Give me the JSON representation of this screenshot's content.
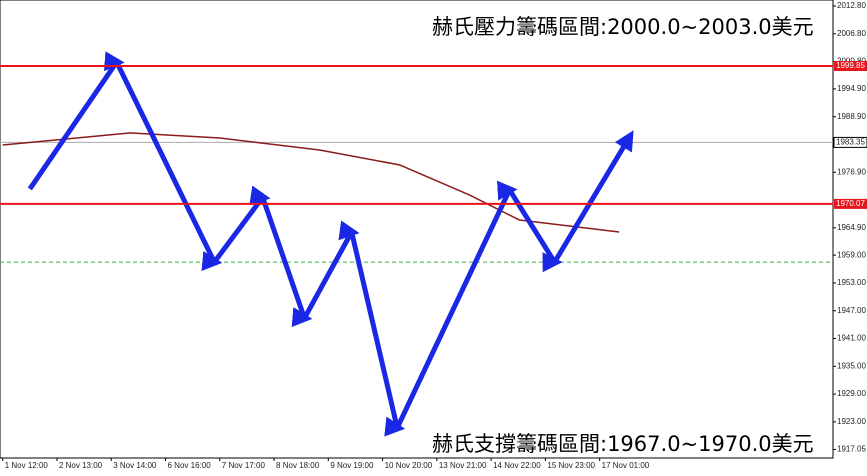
{
  "chart_data": {
    "type": "line",
    "annotations": [
      "赫氏壓力籌碼區間:2000.0~2003.0美元",
      "赫氏支撐籌碼區間:1967.0~1970.0美元"
    ],
    "categories": [
      "1 Nov 12:00",
      "2 Nov 13:00",
      "3 Nov 14:00",
      "6 Nov 16:00",
      "7 Nov 17:00",
      "8 Nov 18:00",
      "9 Nov 19:00",
      "10 Nov 20:00",
      "13 Nov 21:00",
      "14 Nov 22:00",
      "15 Nov 23:00",
      "17 Nov 01:00"
    ],
    "xlim": [
      -0.05,
      15.3
    ],
    "ylim": [
      1915.2,
      2014.1
    ],
    "yticks": [
      {
        "value": 2012.8,
        "label": "2012.80"
      },
      {
        "value": 2006.8,
        "label": "2006.80"
      },
      {
        "value": 2000.8,
        "label": "2000.80"
      },
      {
        "value": 1994.9,
        "label": "1994.90"
      },
      {
        "value": 1988.9,
        "label": "1988.90"
      },
      {
        "value": 1976.9,
        "label": "1976.90"
      },
      {
        "value": 1964.9,
        "label": "1964.90"
      },
      {
        "value": 1959,
        "label": "1959.00"
      },
      {
        "value": 1953,
        "label": "1953.00"
      },
      {
        "value": 1947,
        "label": "1947.00"
      },
      {
        "value": 1941,
        "label": "1941.00"
      },
      {
        "value": 1935,
        "label": "1935.00"
      },
      {
        "value": 1929,
        "label": "1929.00"
      },
      {
        "value": 1923,
        "label": "1923.00"
      },
      {
        "value": 1917.05,
        "label": "1917.05"
      }
    ],
    "levels": [
      1999.85,
      1970.07
    ],
    "level_color": "#e8141c",
    "current_price": 1983.35,
    "guide_level": 1957.5,
    "series": [
      {
        "color": "#1a28e6",
        "x": [
          0.5,
          2.1,
          3.9,
          4.79,
          5.56,
          6.43,
          7.27,
          9.34,
          10.17,
          11.55
        ],
        "values": [
          1973.3,
          2000.7,
          1957.5,
          1971.5,
          1945.4,
          1964.0,
          1921.7,
          1973.1,
          1957.5,
          1984.5
        ]
      },
      {
        "color": "#8b1a1a",
        "x": [
          0,
          2.34,
          4.0,
          5.84,
          7.31,
          8.6,
          9.52,
          11.36
        ],
        "values": [
          1982.8,
          1985.4,
          1984.3,
          1981.7,
          1978.5,
          1972.0,
          1966.6,
          1964.0
        ]
      }
    ]
  }
}
